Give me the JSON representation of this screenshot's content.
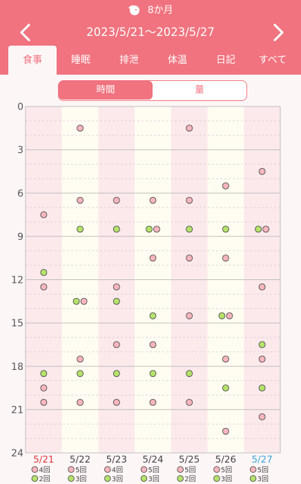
{
  "header": {
    "age": "8か月",
    "date_range": "2023/5/21〜2023/5/27"
  },
  "tabs": [
    {
      "label": "食事",
      "active": true
    },
    {
      "label": "睡眠",
      "active": false
    },
    {
      "label": "排泄",
      "active": false
    },
    {
      "label": "体温",
      "active": false
    },
    {
      "label": "日記",
      "active": false
    },
    {
      "label": "すべて",
      "active": false
    }
  ],
  "segment": {
    "time_label": "時間",
    "amount_label": "量",
    "selected": "時間"
  },
  "colors": {
    "header": "#f0737f",
    "pink_dot": "#f7b5bd",
    "green_dot": "#b5e26a",
    "col_pink": "#fbe9ec",
    "col_cream": "#fffdf2",
    "today": "#3aa5dc",
    "sunday": "#e0383f"
  },
  "chart_data": {
    "type": "scatter",
    "y_axis": {
      "min": 0,
      "max": 24,
      "ticks": [
        0,
        3,
        6,
        9,
        12,
        15,
        18,
        21,
        24
      ],
      "inverted": true
    },
    "days": [
      {
        "label": "5/21",
        "color": "sunday",
        "pink": [
          7.5,
          12.5,
          19.5,
          20.5
        ],
        "green": [
          11.5,
          18.5
        ],
        "pink_count": "4回",
        "green_count": "2回"
      },
      {
        "label": "5/22",
        "color": "normal",
        "pink": [
          1.5,
          6.5,
          13.5,
          17.5,
          20.5
        ],
        "green": [
          8.5,
          13.5,
          18.5
        ],
        "pink_count": "5回",
        "green_count": "3回"
      },
      {
        "label": "5/23",
        "color": "normal",
        "pink": [
          6.5,
          12.5,
          16.5,
          20.5
        ],
        "green": [
          8.5,
          13.5,
          18.5
        ],
        "pink_count": "4回",
        "green_count": "3回"
      },
      {
        "label": "5/24",
        "color": "normal",
        "pink": [
          6.5,
          8.5,
          10.5,
          16.5,
          20.5
        ],
        "green": [
          8.5,
          14.5,
          18.5
        ],
        "pink_count": "5回",
        "green_count": "3回"
      },
      {
        "label": "5/25",
        "color": "normal",
        "pink": [
          1.5,
          6.5,
          10.5,
          14.5,
          20.5
        ],
        "green": [
          8.5,
          18.5
        ],
        "pink_count": "5回",
        "green_count": "2回"
      },
      {
        "label": "5/26",
        "color": "normal",
        "pink": [
          5.5,
          10.5,
          14.5,
          17.5,
          22.5
        ],
        "green": [
          8.5,
          14.5,
          19.5
        ],
        "pink_count": "5回",
        "green_count": "3回"
      },
      {
        "label": "5/27",
        "color": "today",
        "pink": [
          4.5,
          8.5,
          12.5,
          17.5,
          21.5
        ],
        "green": [
          8.5,
          16.5,
          19.5
        ],
        "pink_count": "5回",
        "green_count": "3回"
      }
    ]
  }
}
